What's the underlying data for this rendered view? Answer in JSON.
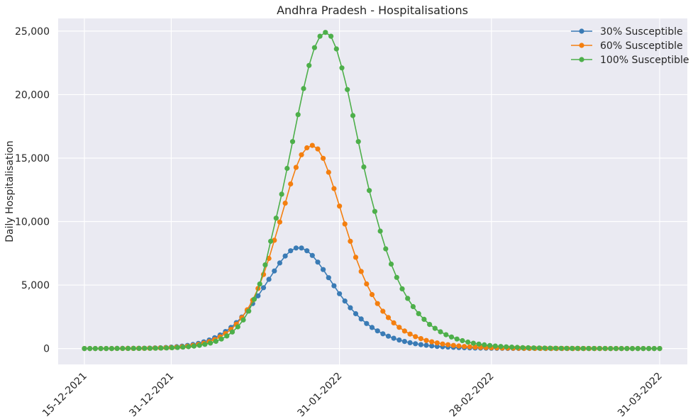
{
  "chart_data": {
    "type": "line",
    "title": "Andhra Pradesh - Hospitalisations",
    "xlabel": "",
    "ylabel": "Daily Hospitalisation",
    "x_start": "15-12-2021",
    "x_end": "31-03-2022",
    "x_ticks": [
      "15-12-2021",
      "31-12-2021",
      "31-01-2022",
      "28-02-2022",
      "31-03-2022"
    ],
    "y_ticks": [
      "0",
      "5,000",
      "10,000",
      "15,000",
      "20,000",
      "25,000"
    ],
    "y_tick_values": [
      0,
      5000,
      10000,
      15000,
      20000,
      25000
    ],
    "ylim": [
      -1250,
      26000
    ],
    "grid": true,
    "legend_position": "top-right",
    "background": "#eaeaf2",
    "series": [
      {
        "name": "30% Susceptible",
        "color": "#3a7bb5",
        "values": [
          0,
          0,
          0,
          0,
          0,
          0,
          10,
          10,
          10,
          15,
          20,
          25,
          35,
          50,
          65,
          85,
          110,
          145,
          190,
          245,
          320,
          410,
          525,
          670,
          850,
          1070,
          1340,
          1660,
          2040,
          2480,
          2980,
          3540,
          4150,
          4790,
          5450,
          6110,
          6740,
          7290,
          7700,
          7920,
          7920,
          7700,
          7330,
          6810,
          6220,
          5580,
          4940,
          4320,
          3740,
          3210,
          2740,
          2330,
          1970,
          1660,
          1390,
          1160,
          970,
          810,
          670,
          560,
          460,
          380,
          310,
          255,
          210,
          170,
          140,
          115,
          95,
          75,
          60,
          50,
          40,
          33,
          27,
          22,
          18,
          15,
          12,
          10,
          8,
          6,
          5,
          4,
          4,
          3,
          3,
          2,
          2,
          2,
          1,
          1,
          1,
          1,
          1,
          1,
          1,
          1,
          1,
          1,
          0,
          0,
          0,
          0,
          0,
          0,
          0
        ]
      },
      {
        "name": "60% Susceptible",
        "color": "#f47f0f",
        "values": [
          0,
          0,
          0,
          0,
          0,
          0,
          5,
          5,
          10,
          10,
          15,
          20,
          25,
          35,
          45,
          60,
          80,
          105,
          140,
          185,
          245,
          320,
          420,
          545,
          710,
          920,
          1180,
          1510,
          1920,
          2430,
          3050,
          3810,
          4730,
          5830,
          7100,
          8530,
          9960,
          11450,
          12960,
          14270,
          15260,
          15810,
          16000,
          15720,
          14980,
          13880,
          12600,
          11220,
          9810,
          8450,
          7190,
          6070,
          5090,
          4250,
          3540,
          2940,
          2440,
          2020,
          1670,
          1380,
          1140,
          940,
          780,
          640,
          530,
          440,
          360,
          300,
          245,
          200,
          165,
          135,
          110,
          90,
          75,
          60,
          50,
          40,
          33,
          27,
          22,
          18,
          15,
          12,
          10,
          8,
          7,
          6,
          5,
          4,
          3,
          3,
          2,
          2,
          2,
          1,
          1,
          1,
          1,
          1,
          1,
          1,
          1,
          1,
          0,
          0,
          0
        ]
      },
      {
        "name": "100% Susceptible",
        "color": "#4daf4a",
        "values": [
          0,
          0,
          0,
          0,
          0,
          0,
          5,
          5,
          5,
          10,
          10,
          15,
          20,
          25,
          35,
          45,
          60,
          80,
          110,
          145,
          190,
          250,
          330,
          430,
          570,
          750,
          990,
          1300,
          1710,
          2250,
          2950,
          3880,
          5080,
          6590,
          8450,
          10270,
          12160,
          14190,
          16300,
          18420,
          20480,
          22300,
          23700,
          24600,
          24900,
          24600,
          23600,
          22100,
          20400,
          18350,
          16300,
          14300,
          12450,
          10800,
          9250,
          7850,
          6650,
          5600,
          4700,
          3950,
          3300,
          2750,
          2300,
          1900,
          1590,
          1320,
          1090,
          910,
          750,
          620,
          510,
          420,
          350,
          290,
          240,
          195,
          160,
          135,
          110,
          90,
          75,
          60,
          50,
          42,
          35,
          28,
          23,
          19,
          16,
          13,
          11,
          9,
          7,
          6,
          5,
          4,
          3,
          3,
          2,
          2,
          2,
          1,
          1,
          1,
          1,
          1
        ]
      }
    ]
  }
}
